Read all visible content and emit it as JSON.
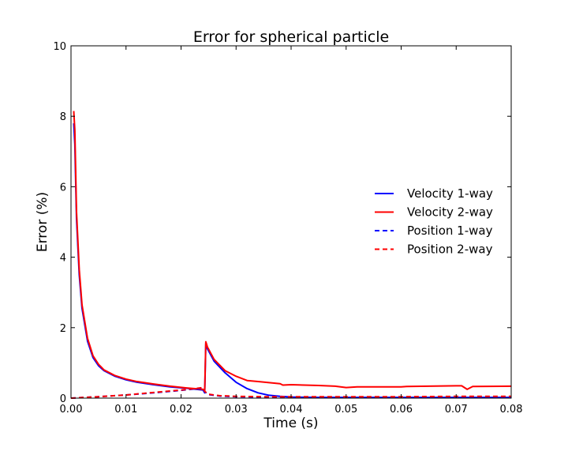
{
  "chart_data": {
    "type": "line",
    "title": "Error for spherical particle",
    "xlabel": "Time (s)",
    "ylabel": "Error (%)",
    "xlim": [
      0,
      0.08
    ],
    "ylim": [
      0,
      10
    ],
    "xticks": [
      0,
      0.01,
      0.02,
      0.03,
      0.04,
      0.05,
      0.06,
      0.07,
      0.08
    ],
    "xtick_labels": [
      "0.00",
      "0.01",
      "0.02",
      "0.03",
      "0.04",
      "0.05",
      "0.06",
      "0.07",
      "0.08"
    ],
    "yticks": [
      0,
      2,
      4,
      6,
      8,
      10
    ],
    "ytick_labels": [
      "0",
      "2",
      "4",
      "6",
      "8",
      "10"
    ],
    "grid": false,
    "legend_position": "center-right",
    "series": [
      {
        "name": "Velocity 1-way",
        "color": "#0000ff",
        "style": "solid",
        "x": [
          0.0005,
          0.0007,
          0.001,
          0.0015,
          0.002,
          0.003,
          0.004,
          0.005,
          0.006,
          0.008,
          0.01,
          0.012,
          0.015,
          0.018,
          0.021,
          0.024,
          0.0243,
          0.0245,
          0.0248,
          0.026,
          0.028,
          0.03,
          0.032,
          0.034,
          0.036,
          0.038,
          0.04,
          0.045,
          0.05,
          0.06,
          0.07,
          0.08
        ],
        "y": [
          7.8,
          7.2,
          5.1,
          3.5,
          2.55,
          1.62,
          1.15,
          0.92,
          0.78,
          0.62,
          0.52,
          0.45,
          0.38,
          0.32,
          0.28,
          0.23,
          0.15,
          1.55,
          1.4,
          1.05,
          0.72,
          0.45,
          0.27,
          0.15,
          0.08,
          0.05,
          0.03,
          0.02,
          0.02,
          0.02,
          0.02,
          0.02
        ]
      },
      {
        "name": "Velocity 2-way",
        "color": "#ff0000",
        "style": "solid",
        "x": [
          0.0005,
          0.0007,
          0.001,
          0.0015,
          0.002,
          0.003,
          0.004,
          0.005,
          0.006,
          0.008,
          0.01,
          0.012,
          0.015,
          0.018,
          0.021,
          0.024,
          0.0243,
          0.0245,
          0.0248,
          0.026,
          0.028,
          0.03,
          0.032,
          0.034,
          0.036,
          0.038,
          0.0385,
          0.04,
          0.045,
          0.048,
          0.05,
          0.052,
          0.06,
          0.061,
          0.07,
          0.071,
          0.0715,
          0.072,
          0.073,
          0.08
        ],
        "y": [
          8.15,
          7.6,
          5.3,
          3.65,
          2.65,
          1.7,
          1.2,
          0.96,
          0.8,
          0.64,
          0.54,
          0.47,
          0.4,
          0.34,
          0.29,
          0.25,
          0.2,
          1.6,
          1.45,
          1.1,
          0.78,
          0.62,
          0.5,
          0.47,
          0.44,
          0.41,
          0.37,
          0.38,
          0.36,
          0.34,
          0.3,
          0.32,
          0.32,
          0.33,
          0.35,
          0.35,
          0.3,
          0.25,
          0.33,
          0.34
        ]
      },
      {
        "name": "Position 1-way",
        "color": "#0000ff",
        "style": "dashed",
        "x": [
          0,
          0.005,
          0.01,
          0.015,
          0.02,
          0.023,
          0.024,
          0.0243,
          0.025,
          0.027,
          0.03,
          0.035,
          0.04,
          0.05,
          0.06,
          0.07,
          0.08
        ],
        "y": [
          0,
          0.04,
          0.09,
          0.15,
          0.22,
          0.27,
          0.29,
          0.18,
          0.1,
          0.06,
          0.04,
          0.03,
          0.02,
          0.02,
          0.02,
          0.02,
          0.02
        ]
      },
      {
        "name": "Position 2-way",
        "color": "#ff0000",
        "style": "dashed",
        "x": [
          0,
          0.005,
          0.01,
          0.015,
          0.02,
          0.023,
          0.024,
          0.0243,
          0.025,
          0.027,
          0.03,
          0.035,
          0.04,
          0.05,
          0.06,
          0.07,
          0.08
        ],
        "y": [
          0,
          0.04,
          0.09,
          0.16,
          0.23,
          0.28,
          0.3,
          0.19,
          0.11,
          0.07,
          0.05,
          0.04,
          0.04,
          0.04,
          0.04,
          0.05,
          0.05
        ]
      }
    ]
  }
}
